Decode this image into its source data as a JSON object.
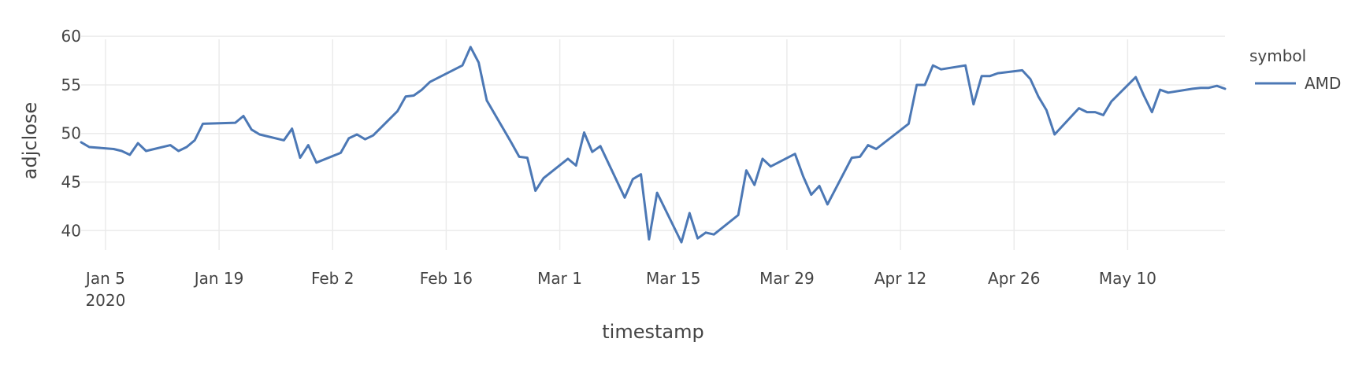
{
  "chart_data": {
    "type": "line",
    "xlabel": "timestamp",
    "ylabel": "adjclose",
    "ylim": [
      38,
      60.5
    ],
    "xlim": [
      "2020-01-02",
      "2020-05-22"
    ],
    "grid": true,
    "legend": {
      "title": "symbol",
      "placement": "top-right"
    },
    "x_ticks": [
      {
        "date": "2020-01-05",
        "label": "Jan 5",
        "sublabel": "2020"
      },
      {
        "date": "2020-01-19",
        "label": "Jan 19"
      },
      {
        "date": "2020-02-02",
        "label": "Feb 2"
      },
      {
        "date": "2020-02-16",
        "label": "Feb 16"
      },
      {
        "date": "2020-03-01",
        "label": "Mar 1"
      },
      {
        "date": "2020-03-15",
        "label": "Mar 15"
      },
      {
        "date": "2020-03-29",
        "label": "Mar 29"
      },
      {
        "date": "2020-04-12",
        "label": "Apr 12"
      },
      {
        "date": "2020-04-26",
        "label": "Apr 26"
      },
      {
        "date": "2020-05-10",
        "label": "May 10"
      }
    ],
    "y_ticks": [
      40,
      45,
      50,
      55,
      60
    ],
    "series": [
      {
        "name": "AMD",
        "color": "#4c78b5",
        "x": [
          "2020-01-02",
          "2020-01-03",
          "2020-01-06",
          "2020-01-07",
          "2020-01-08",
          "2020-01-09",
          "2020-01-10",
          "2020-01-13",
          "2020-01-14",
          "2020-01-15",
          "2020-01-16",
          "2020-01-17",
          "2020-01-21",
          "2020-01-22",
          "2020-01-23",
          "2020-01-24",
          "2020-01-27",
          "2020-01-28",
          "2020-01-29",
          "2020-01-30",
          "2020-01-31",
          "2020-02-03",
          "2020-02-04",
          "2020-02-05",
          "2020-02-06",
          "2020-02-07",
          "2020-02-10",
          "2020-02-11",
          "2020-02-12",
          "2020-02-13",
          "2020-02-14",
          "2020-02-18",
          "2020-02-19",
          "2020-02-20",
          "2020-02-21",
          "2020-02-24",
          "2020-02-25",
          "2020-02-26",
          "2020-02-27",
          "2020-02-28",
          "2020-03-02",
          "2020-03-03",
          "2020-03-04",
          "2020-03-05",
          "2020-03-06",
          "2020-03-09",
          "2020-03-10",
          "2020-03-11",
          "2020-03-12",
          "2020-03-13",
          "2020-03-16",
          "2020-03-17",
          "2020-03-18",
          "2020-03-19",
          "2020-03-20",
          "2020-03-23",
          "2020-03-24",
          "2020-03-25",
          "2020-03-26",
          "2020-03-27",
          "2020-03-30",
          "2020-03-31",
          "2020-04-01",
          "2020-04-02",
          "2020-04-03",
          "2020-04-06",
          "2020-04-07",
          "2020-04-08",
          "2020-04-09",
          "2020-04-13",
          "2020-04-14",
          "2020-04-15",
          "2020-04-16",
          "2020-04-17",
          "2020-04-20",
          "2020-04-21",
          "2020-04-22",
          "2020-04-23",
          "2020-04-24",
          "2020-04-27",
          "2020-04-28",
          "2020-04-29",
          "2020-04-30",
          "2020-05-01",
          "2020-05-04",
          "2020-05-05",
          "2020-05-06",
          "2020-05-07",
          "2020-05-08",
          "2020-05-11",
          "2020-05-12",
          "2020-05-13",
          "2020-05-14",
          "2020-05-15",
          "2020-05-18",
          "2020-05-19",
          "2020-05-20",
          "2020-05-21",
          "2020-05-22"
        ],
        "y": [
          49.1,
          48.6,
          48.4,
          48.2,
          47.8,
          49.0,
          48.2,
          48.8,
          48.2,
          48.6,
          49.3,
          51.0,
          51.1,
          51.8,
          50.4,
          49.9,
          49.3,
          50.5,
          47.5,
          48.8,
          47.0,
          48.0,
          49.5,
          49.9,
          49.4,
          49.8,
          52.3,
          53.8,
          53.9,
          54.5,
          55.3,
          57.0,
          58.9,
          57.3,
          53.4,
          49.1,
          47.6,
          47.5,
          44.1,
          45.4,
          47.4,
          46.7,
          50.1,
          48.1,
          48.7,
          43.4,
          45.3,
          45.8,
          39.1,
          43.9,
          38.8,
          41.8,
          39.2,
          39.8,
          39.6,
          41.6,
          46.2,
          44.7,
          47.4,
          46.6,
          47.9,
          45.6,
          43.7,
          44.6,
          42.7,
          47.5,
          47.6,
          48.8,
          48.4,
          51.0,
          55.0,
          55.0,
          57.0,
          56.6,
          57.0,
          53.0,
          55.9,
          55.9,
          56.2,
          56.5,
          55.6,
          53.8,
          52.4,
          49.9,
          52.6,
          52.2,
          52.2,
          51.9,
          53.3,
          55.8,
          53.9,
          52.2,
          54.5,
          54.2,
          54.6,
          54.7,
          54.7,
          54.9,
          54.6
        ]
      }
    ]
  }
}
